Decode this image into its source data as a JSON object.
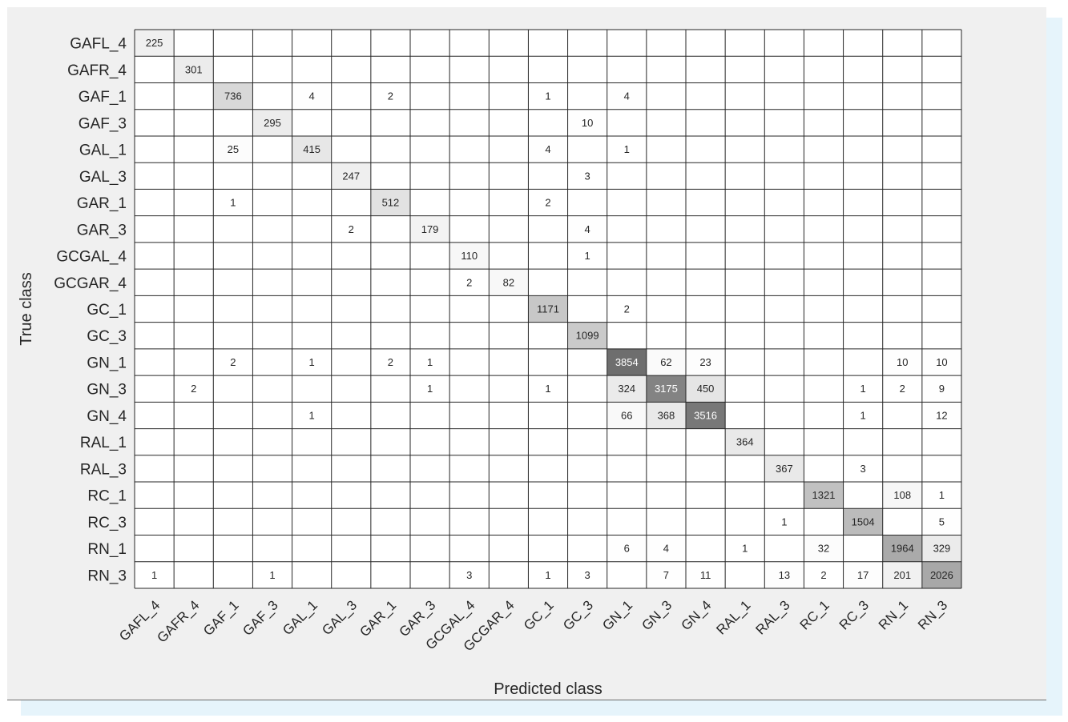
{
  "chart_data": {
    "type": "heatmap",
    "xlabel": "Predicted class",
    "ylabel": "True class",
    "classes": [
      "GAFL_4",
      "GAFR_4",
      "GAF_1",
      "GAF_3",
      "GAL_1",
      "GAL_3",
      "GAR_1",
      "GAR_3",
      "GCGAL_4",
      "GCGAR_4",
      "GC_1",
      "GC_3",
      "GN_1",
      "GN_3",
      "GN_4",
      "RAL_1",
      "RAL_3",
      "RC_1",
      "RC_3",
      "RN_1",
      "RN_3"
    ],
    "matrix": [
      [
        225,
        0,
        0,
        0,
        0,
        0,
        0,
        0,
        0,
        0,
        0,
        0,
        0,
        0,
        0,
        0,
        0,
        0,
        0,
        0,
        0
      ],
      [
        0,
        301,
        0,
        0,
        0,
        0,
        0,
        0,
        0,
        0,
        0,
        0,
        0,
        0,
        0,
        0,
        0,
        0,
        0,
        0,
        0
      ],
      [
        0,
        0,
        736,
        0,
        4,
        0,
        2,
        0,
        0,
        0,
        1,
        0,
        4,
        0,
        0,
        0,
        0,
        0,
        0,
        0,
        0
      ],
      [
        0,
        0,
        0,
        295,
        0,
        0,
        0,
        0,
        0,
        0,
        0,
        10,
        0,
        0,
        0,
        0,
        0,
        0,
        0,
        0,
        0
      ],
      [
        0,
        0,
        25,
        0,
        415,
        0,
        0,
        0,
        0,
        0,
        4,
        0,
        1,
        0,
        0,
        0,
        0,
        0,
        0,
        0,
        0
      ],
      [
        0,
        0,
        0,
        0,
        0,
        247,
        0,
        0,
        0,
        0,
        0,
        3,
        0,
        0,
        0,
        0,
        0,
        0,
        0,
        0,
        0
      ],
      [
        0,
        0,
        1,
        0,
        0,
        0,
        512,
        0,
        0,
        0,
        2,
        0,
        0,
        0,
        0,
        0,
        0,
        0,
        0,
        0,
        0
      ],
      [
        0,
        0,
        0,
        0,
        0,
        2,
        0,
        179,
        0,
        0,
        0,
        4,
        0,
        0,
        0,
        0,
        0,
        0,
        0,
        0,
        0
      ],
      [
        0,
        0,
        0,
        0,
        0,
        0,
        0,
        0,
        110,
        0,
        0,
        1,
        0,
        0,
        0,
        0,
        0,
        0,
        0,
        0,
        0
      ],
      [
        0,
        0,
        0,
        0,
        0,
        0,
        0,
        0,
        2,
        82,
        0,
        0,
        0,
        0,
        0,
        0,
        0,
        0,
        0,
        0,
        0
      ],
      [
        0,
        0,
        0,
        0,
        0,
        0,
        0,
        0,
        0,
        0,
        1171,
        0,
        2,
        0,
        0,
        0,
        0,
        0,
        0,
        0,
        0
      ],
      [
        0,
        0,
        0,
        0,
        0,
        0,
        0,
        0,
        0,
        0,
        0,
        1099,
        0,
        0,
        0,
        0,
        0,
        0,
        0,
        0,
        0
      ],
      [
        0,
        0,
        2,
        0,
        1,
        0,
        2,
        1,
        0,
        0,
        0,
        0,
        3854,
        62,
        23,
        0,
        0,
        0,
        0,
        10,
        10
      ],
      [
        0,
        2,
        0,
        0,
        0,
        0,
        0,
        1,
        0,
        0,
        1,
        0,
        324,
        3175,
        450,
        0,
        0,
        0,
        1,
        2,
        9
      ],
      [
        0,
        0,
        0,
        0,
        1,
        0,
        0,
        0,
        0,
        0,
        0,
        0,
        66,
        368,
        3516,
        0,
        0,
        0,
        1,
        0,
        12
      ],
      [
        0,
        0,
        0,
        0,
        0,
        0,
        0,
        0,
        0,
        0,
        0,
        0,
        0,
        0,
        0,
        364,
        0,
        0,
        0,
        0,
        0
      ],
      [
        0,
        0,
        0,
        0,
        0,
        0,
        0,
        0,
        0,
        0,
        0,
        0,
        0,
        0,
        0,
        0,
        367,
        0,
        3,
        0,
        0
      ],
      [
        0,
        0,
        0,
        0,
        0,
        0,
        0,
        0,
        0,
        0,
        0,
        0,
        0,
        0,
        0,
        0,
        0,
        1321,
        0,
        108,
        1
      ],
      [
        0,
        0,
        0,
        0,
        0,
        0,
        0,
        0,
        0,
        0,
        0,
        0,
        0,
        0,
        0,
        0,
        1,
        0,
        1504,
        0,
        5
      ],
      [
        0,
        0,
        0,
        0,
        0,
        0,
        0,
        0,
        0,
        0,
        0,
        0,
        6,
        4,
        0,
        1,
        0,
        32,
        0,
        1964,
        329
      ],
      [
        1,
        0,
        0,
        1,
        0,
        0,
        0,
        0,
        3,
        0,
        1,
        3,
        0,
        7,
        11,
        0,
        13,
        2,
        17,
        201,
        2026
      ]
    ],
    "color_scale": {
      "min_color": "#ffffff",
      "max_color": "#6e6e6e"
    },
    "grid": true
  }
}
